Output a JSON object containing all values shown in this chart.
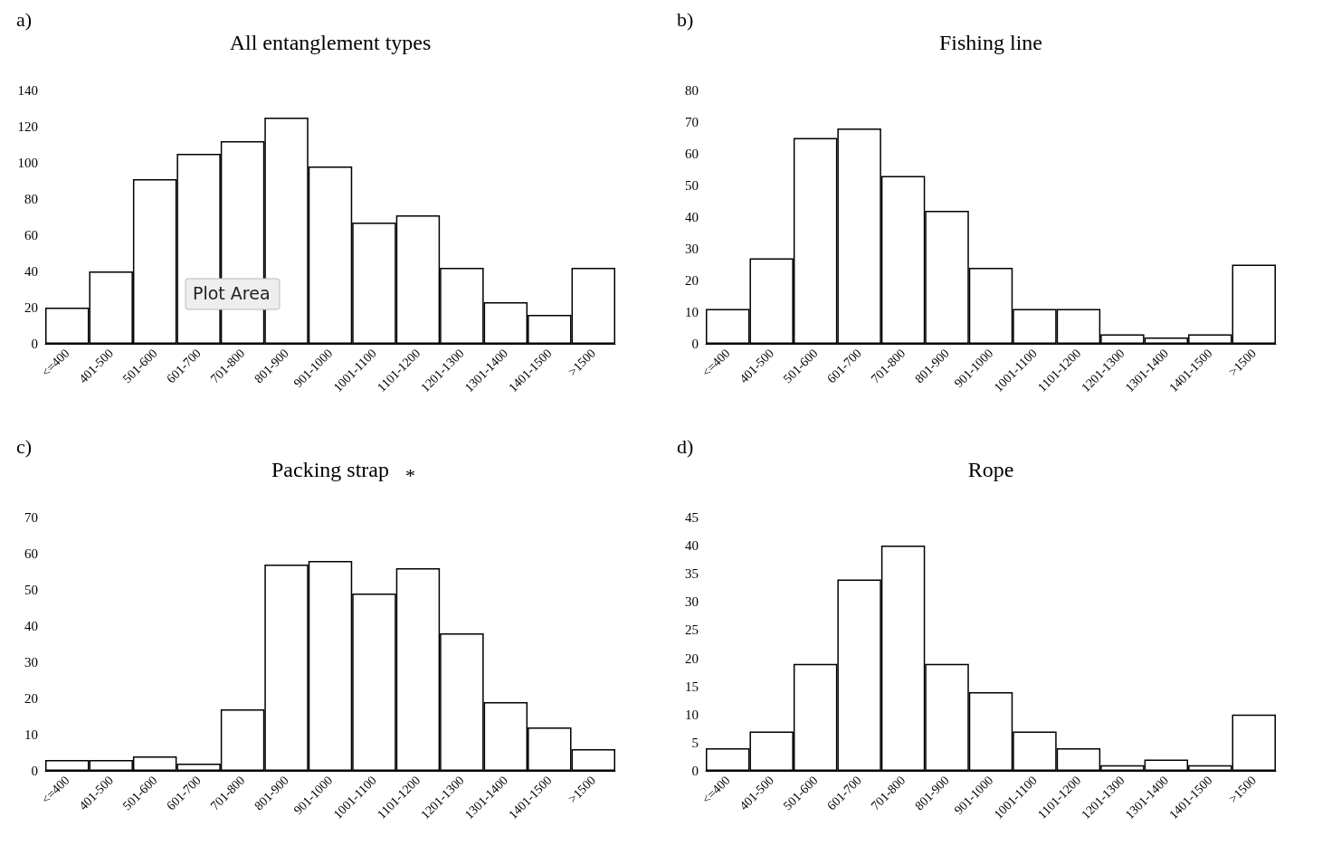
{
  "chart_data": [
    {
      "type": "bar",
      "title": "All entanglement types",
      "annotations": [
        "a)",
        "Plot Area"
      ],
      "categories": [
        "<=400",
        "401-500",
        "501-600",
        "601-700",
        "701-800",
        "801-900",
        "901-1000",
        "1001-1100",
        "1101-1200",
        "1201-1300",
        "1301-1400",
        "1401-1500",
        ">1500"
      ],
      "values": [
        20,
        40,
        91,
        105,
        112,
        125,
        98,
        67,
        71,
        42,
        23,
        16,
        42
      ],
      "color": "#ffffff",
      "ylim": [
        0,
        140
      ],
      "yticks": [
        0,
        20,
        40,
        60,
        80,
        100,
        120,
        140
      ],
      "grid": false
    },
    {
      "type": "bar",
      "title": "Fishing line",
      "annotations": [
        "b)"
      ],
      "categories": [
        "<=400",
        "401-500",
        "501-600",
        "601-700",
        "701-800",
        "801-900",
        "901-1000",
        "1001-1100",
        "1101-1200",
        "1201-1300",
        "1301-1400",
        "1401-1500",
        ">1500"
      ],
      "values": [
        11,
        27,
        65,
        68,
        53,
        42,
        24,
        11,
        11,
        3,
        2,
        3,
        25
      ],
      "color": "#ffffff",
      "ylim": [
        0,
        80
      ],
      "yticks": [
        0,
        10,
        20,
        30,
        40,
        50,
        60,
        70,
        80
      ],
      "grid": false
    },
    {
      "type": "bar",
      "title": "Packing strap",
      "annotations": [
        "c)",
        "*"
      ],
      "categories": [
        "<=400",
        "401-500",
        "501-600",
        "601-700",
        "701-800",
        "801-900",
        "901-1000",
        "1001-1100",
        "1101-1200",
        "1201-1300",
        "1301-1400",
        "1401-1500",
        ">1500"
      ],
      "values": [
        3,
        3,
        4,
        2,
        17,
        57,
        58,
        49,
        56,
        38,
        19,
        12,
        6
      ],
      "color": "#ffffff",
      "ylim": [
        0,
        70
      ],
      "yticks": [
        0,
        10,
        20,
        30,
        40,
        50,
        60,
        70
      ],
      "grid": false
    },
    {
      "type": "bar",
      "title": "Rope",
      "annotations": [
        "d)"
      ],
      "categories": [
        "<=400",
        "401-500",
        "501-600",
        "601-700",
        "701-800",
        "801-900",
        "901-1000",
        "1001-1100",
        "1101-1200",
        "1201-1300",
        "1301-1400",
        "1401-1500",
        ">1500"
      ],
      "values": [
        4,
        7,
        19,
        34,
        40,
        19,
        14,
        7,
        4,
        1,
        2,
        1,
        10
      ],
      "color": "#ffffff",
      "ylim": [
        0,
        45
      ],
      "yticks": [
        0,
        5,
        10,
        15,
        20,
        25,
        30,
        35,
        40,
        45
      ],
      "grid": false
    }
  ]
}
